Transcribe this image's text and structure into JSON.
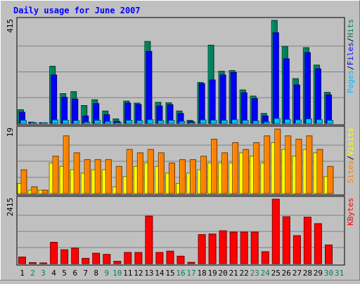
{
  "colors": {
    "background": "#c0c0c0",
    "panel_border": "#000000",
    "gridline": "#808080",
    "title": "#0000ff",
    "hits": "#00805c",
    "files": "#0000ff",
    "pages": "#00c0ff",
    "visits": "#ffff00",
    "sites": "#ff8000",
    "kbytes": "#ff0000",
    "day_weekday": "#000000",
    "day_weekend": "#00805c"
  },
  "chart_data": {
    "type": "bar",
    "title": "Daily usage for June 2007",
    "categories": [
      "1",
      "2",
      "3",
      "4",
      "5",
      "6",
      "7",
      "8",
      "9",
      "10",
      "11",
      "12",
      "13",
      "14",
      "15",
      "16",
      "17",
      "18",
      "19",
      "20",
      "21",
      "22",
      "23",
      "24",
      "25",
      "26",
      "27",
      "28",
      "29",
      "30",
      "31"
    ],
    "weekend_days": [
      "2",
      "3",
      "9",
      "10",
      "16",
      "17",
      "23",
      "24",
      "30",
      "31"
    ],
    "panels": [
      {
        "id": "hits-files-pages",
        "ymax": 415,
        "ymax_label": "415",
        "legend": [
          "Pages",
          "Files",
          "Hits"
        ],
        "series": [
          {
            "name": "Hits",
            "color_key": "hits",
            "values": [
              55,
              5,
              3,
              230,
              120,
              128,
              72,
              95,
              50,
              18,
              90,
              82,
              330,
              85,
              83,
              50,
              12,
              165,
              315,
              210,
              213,
              135,
              110,
              40,
              415,
              310,
              180,
              305,
              235,
              125,
              0
            ]
          },
          {
            "name": "Files",
            "color_key": "files",
            "values": [
              45,
              3,
              2,
              195,
              105,
              98,
              30,
              80,
              35,
              8,
              82,
              76,
              290,
              70,
              75,
              40,
              8,
              160,
              175,
              195,
              205,
              123,
              100,
              30,
              365,
              260,
              155,
              285,
              220,
              115,
              0
            ]
          },
          {
            "name": "Pages",
            "color_key": "pages",
            "values": [
              12,
              1,
              1,
              14,
              13,
              11,
              5,
              12,
              8,
              2,
              12,
              11,
              15,
              11,
              12,
              8,
              3,
              14,
              13,
              12,
              15,
              12,
              10,
              6,
              20,
              16,
              14,
              18,
              15,
              12,
              0
            ]
          }
        ]
      },
      {
        "id": "visits-sites",
        "ymax": 19,
        "ymax_label": "19",
        "legend": [
          "Sites",
          "Visits"
        ],
        "series": [
          {
            "name": "Visits",
            "color_key": "visits",
            "values": [
              3,
              1,
              1,
              9,
              8,
              7,
              6,
              7,
              7,
              2,
              5,
              8,
              9,
              8,
              6,
              3,
              6,
              7,
              9,
              9,
              9,
              12,
              11,
              9,
              15,
              13,
              11,
              13,
              12,
              5,
              0
            ]
          },
          {
            "name": "Sites",
            "color_key": "sites",
            "values": [
              7,
              2,
              1,
              11,
              17,
              12,
              10,
              10,
              10,
              8,
              13,
              12,
              13,
              12,
              9,
              10,
              10,
              11,
              16,
              12,
              15,
              13,
              15,
              17,
              19,
              17,
              16,
              17,
              13,
              8,
              0
            ]
          }
        ]
      },
      {
        "id": "kbytes",
        "ymax": 2415,
        "ymax_label": "2415",
        "legend": [
          "KBytes"
        ],
        "series": [
          {
            "name": "KBytes",
            "color_key": "kbytes",
            "values": [
              250,
              40,
              30,
              800,
              520,
              580,
              200,
              390,
              350,
              90,
              420,
              420,
              1780,
              420,
              470,
              280,
              50,
              1090,
              1110,
              1230,
              1180,
              1180,
              1180,
              450,
              2415,
              1760,
              1050,
              1740,
              1500,
              700,
              0
            ]
          }
        ]
      }
    ]
  }
}
